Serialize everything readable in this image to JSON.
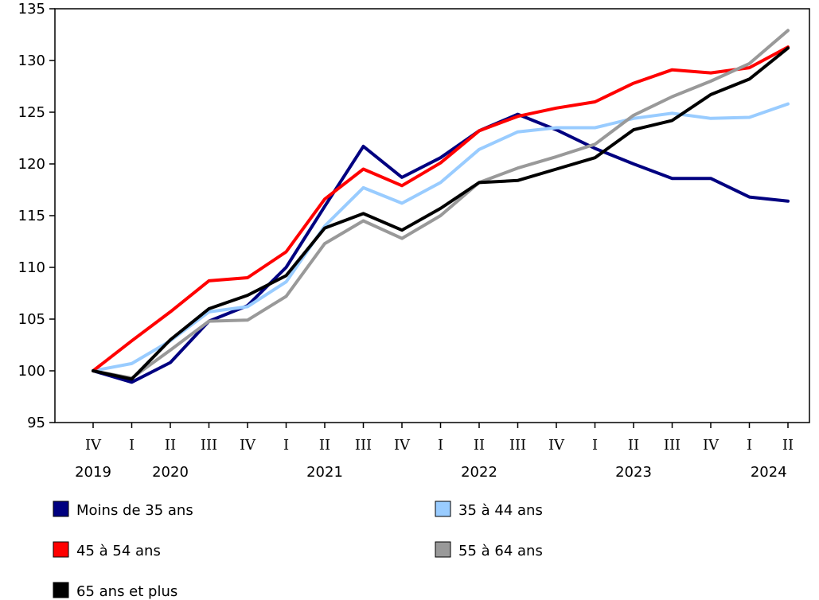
{
  "chart_data": {
    "type": "line",
    "title": "",
    "xlabel": "",
    "ylabel": "",
    "ylim": [
      95,
      135
    ],
    "yticks": [
      95,
      100,
      105,
      110,
      115,
      120,
      125,
      130,
      135
    ],
    "grid": false,
    "legend_position": "bottom",
    "categories": [
      "IV",
      "I",
      "II",
      "III",
      "IV",
      "I",
      "II",
      "III",
      "IV",
      "I",
      "II",
      "III",
      "IV",
      "I",
      "II",
      "III",
      "IV",
      "I",
      "II"
    ],
    "year_labels": [
      {
        "label": "2019",
        "index": 0
      },
      {
        "label": "2020",
        "index": 2
      },
      {
        "label": "2021",
        "index": 6
      },
      {
        "label": "2022",
        "index": 10
      },
      {
        "label": "2023",
        "index": 14
      },
      {
        "label": "2024",
        "index": 17.5
      }
    ],
    "series": [
      {
        "name": "Moins de 35 ans",
        "color": "#000080",
        "values": [
          100,
          98.9,
          100.8,
          104.8,
          106.3,
          110.0,
          115.9,
          121.7,
          118.7,
          120.6,
          123.2,
          124.8,
          123.3,
          121.5,
          120.0,
          118.6,
          118.6,
          116.8,
          116.4
        ]
      },
      {
        "name": "35 à 44 ans",
        "color": "#99ccff",
        "values": [
          100,
          100.7,
          102.9,
          105.7,
          106.2,
          108.6,
          114.0,
          117.7,
          116.2,
          118.2,
          121.4,
          123.1,
          123.5,
          123.5,
          124.4,
          124.9,
          124.4,
          124.5,
          125.8
        ]
      },
      {
        "name": "45 à 54 ans",
        "color": "#ff0000",
        "values": [
          100,
          102.9,
          105.7,
          108.7,
          109.0,
          111.5,
          116.6,
          119.5,
          117.9,
          120.1,
          123.2,
          124.6,
          125.4,
          126.0,
          127.8,
          129.1,
          128.8,
          129.3,
          131.3
        ]
      },
      {
        "name": "55 à 64 ans",
        "color": "#999999",
        "values": [
          100,
          99.3,
          102.0,
          104.8,
          104.9,
          107.2,
          112.3,
          114.5,
          112.8,
          115.0,
          118.2,
          119.6,
          120.7,
          121.9,
          124.7,
          126.5,
          128.0,
          129.7,
          132.9
        ]
      },
      {
        "name": "65 ans et plus",
        "color": "#000000",
        "values": [
          100,
          99.2,
          103.0,
          106.0,
          107.3,
          109.2,
          113.8,
          115.2,
          113.6,
          115.7,
          118.2,
          118.4,
          119.5,
          120.6,
          123.3,
          124.2,
          126.7,
          128.2,
          131.2
        ]
      }
    ]
  }
}
